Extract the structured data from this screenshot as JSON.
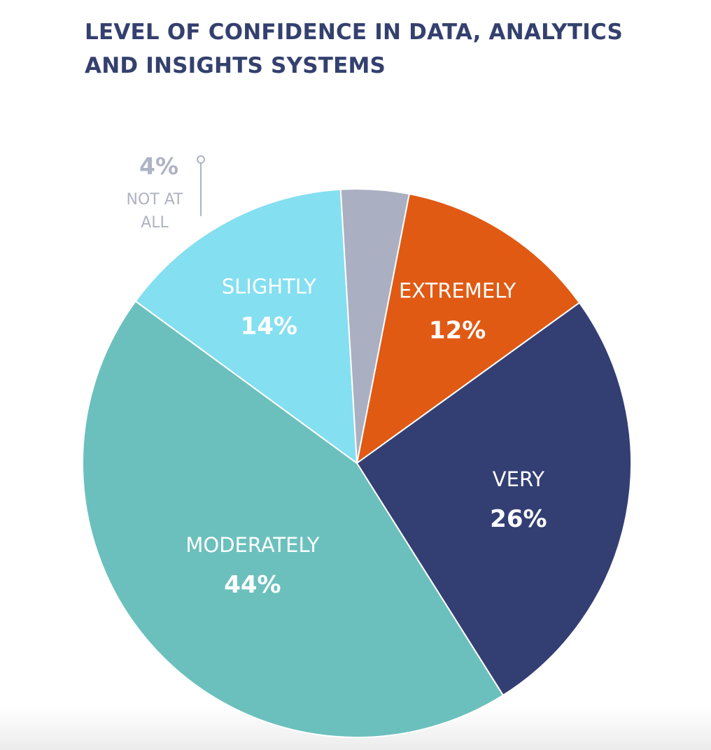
{
  "chart_data": {
    "type": "pie",
    "title": "LEVEL OF CONFIDENCE IN DATA, ANALYTICS AND INSIGHTS SYSTEMS",
    "slices": [
      {
        "name": "EXTREMELY",
        "value": 12,
        "value_label": "12%",
        "color": "#e05a14"
      },
      {
        "name": "VERY",
        "value": 26,
        "value_label": "26%",
        "color": "#333f73"
      },
      {
        "name": "MODERATELY",
        "value": 44,
        "value_label": "44%",
        "color": "#6bc0bd"
      },
      {
        "name": "SLIGHTLY",
        "value": 14,
        "value_label": "14%",
        "color": "#84dff0"
      },
      {
        "name": "NOT AT ALL",
        "name_lines": [
          "NOT AT",
          "ALL"
        ],
        "value": 4,
        "value_label": "4%",
        "color": "#abafc2"
      }
    ]
  }
}
